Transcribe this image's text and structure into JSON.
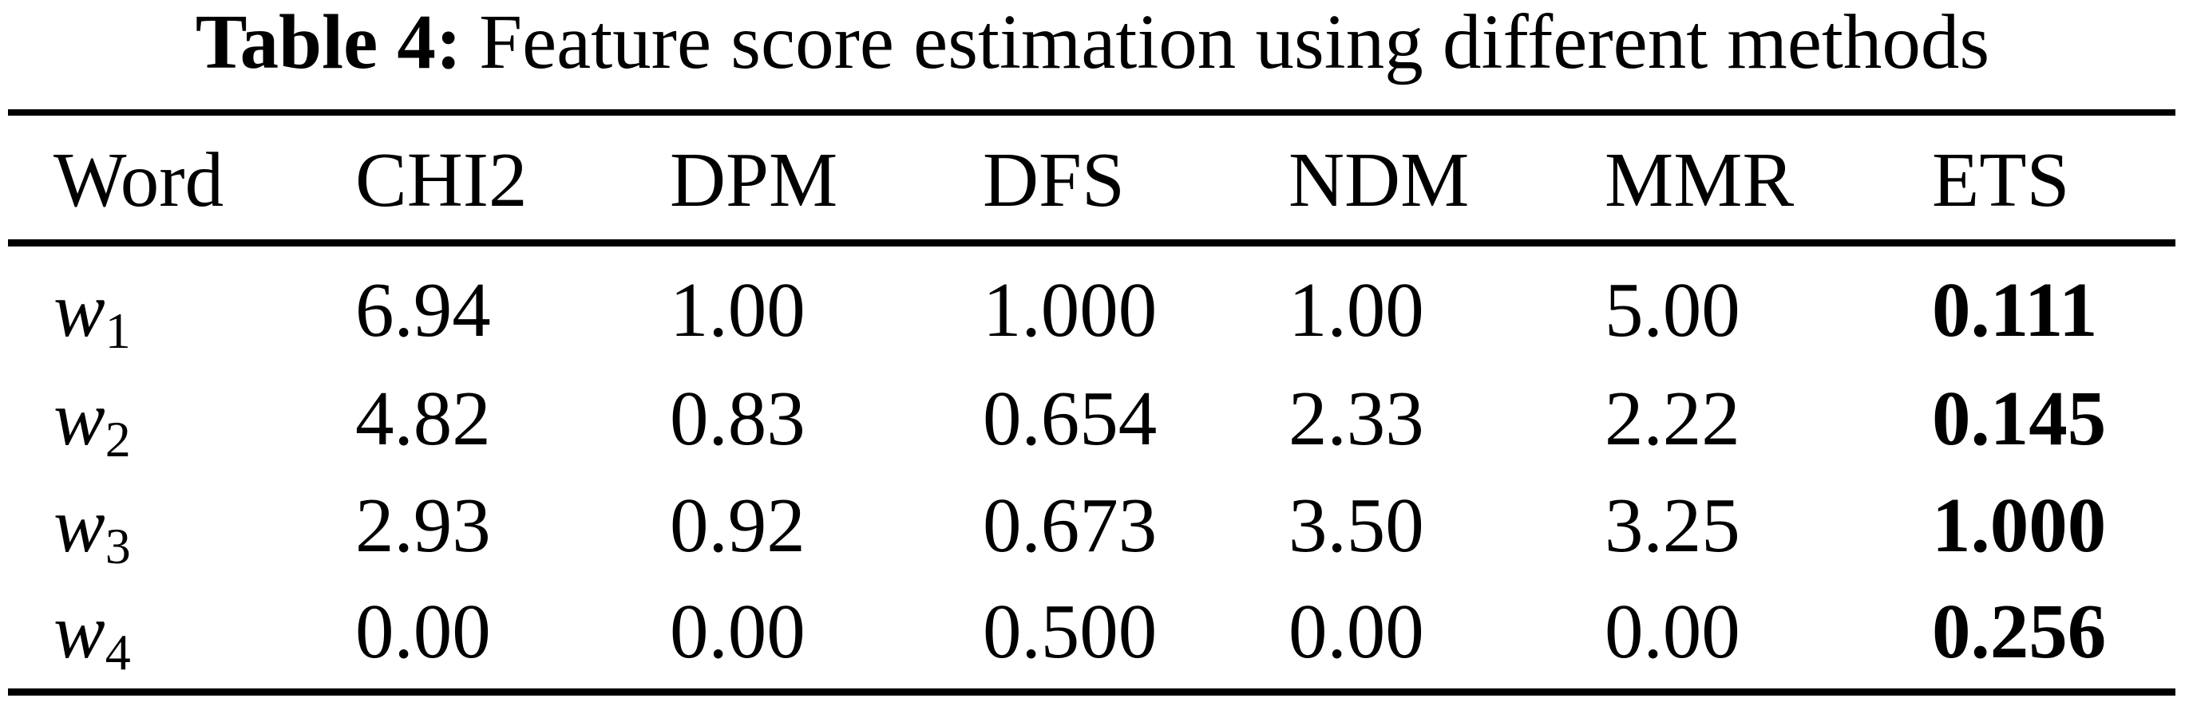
{
  "caption": {
    "label": "Table 4:",
    "text": "Feature score estimation using different methods"
  },
  "table": {
    "columns": [
      "Word",
      "CHI2",
      "DPM",
      "DFS",
      "NDM",
      "MMR",
      "ETS"
    ],
    "rows": [
      {
        "label_base": "w",
        "label_sub": "1",
        "values": [
          "6.94",
          "1.00",
          "1.000",
          "1.00",
          "5.00",
          "0.111"
        ]
      },
      {
        "label_base": "w",
        "label_sub": "2",
        "values": [
          "4.82",
          "0.83",
          "0.654",
          "2.33",
          "2.22",
          "0.145"
        ]
      },
      {
        "label_base": "w",
        "label_sub": "3",
        "values": [
          "2.93",
          "0.92",
          "0.673",
          "3.50",
          "3.25",
          "1.000"
        ]
      },
      {
        "label_base": "w",
        "label_sub": "4",
        "values": [
          "0.00",
          "0.00",
          "0.500",
          "0.00",
          "0.00",
          "0.256"
        ]
      }
    ],
    "bold_column": "ETS",
    "text_color": "#000000",
    "background_color": "#ffffff",
    "rule_color": "#000000"
  }
}
